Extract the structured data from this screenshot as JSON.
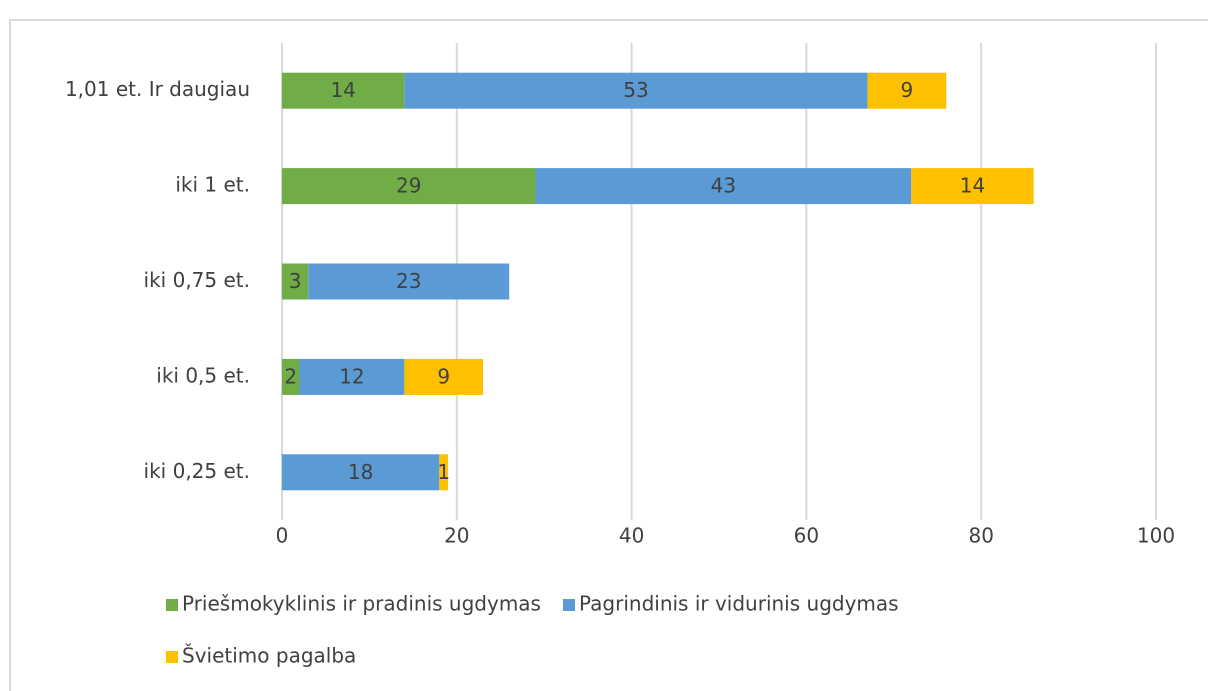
{
  "chart_data": {
    "type": "bar",
    "orientation": "horizontal",
    "stacked": true,
    "categories": [
      "1,01 et. Ir daugiau",
      "iki 1 et.",
      "iki 0,75 et.",
      "iki 0,5 et.",
      "iki 0,25 et."
    ],
    "series": [
      {
        "name": "Priešmokyklinis ir pradinis ugdymas",
        "color": "#70ad47",
        "values": [
          14,
          29,
          3,
          2,
          null
        ]
      },
      {
        "name": "Pagrindinis ir vidurinis ugdymas",
        "color": "#5b9bd5",
        "values": [
          53,
          43,
          23,
          12,
          18
        ]
      },
      {
        "name": "Švietimo pagalba",
        "color": "#ffc000",
        "values": [
          9,
          14,
          null,
          9,
          1
        ]
      }
    ],
    "xlim": [
      0,
      100
    ],
    "xticks": [
      0,
      20,
      40,
      60,
      80,
      100
    ],
    "grid": true,
    "legend": "bottom"
  }
}
